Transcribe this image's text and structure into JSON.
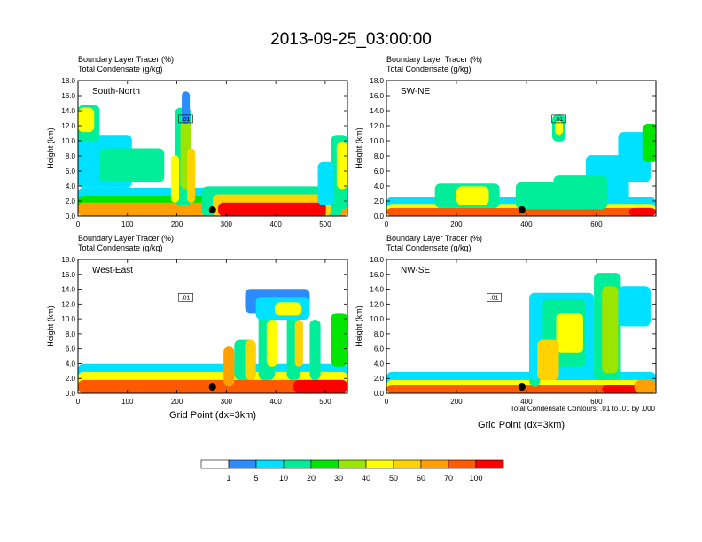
{
  "chart_data": {
    "type": "heatmap",
    "title": "2013-09-25_03:00:00",
    "panel_subtitle_1": "Boundary Layer Tracer    (%)",
    "panel_subtitle_2": "Total Condensate    (g/kg)",
    "ylabel": "Height (km)",
    "xlabel": "Grid Point (dx=3km)",
    "contour_note": "Total Condensate Contours: .01 to .01 by .000",
    "contour_label": ".01",
    "y_ticks": [
      "0.0",
      "2.0",
      "4.0",
      "6.0",
      "8.0",
      "10.0",
      "12.0",
      "14.0",
      "16.0",
      "18.0"
    ],
    "ylim": [
      0,
      18
    ],
    "colorbar": {
      "levels": [
        "1",
        "5",
        "10",
        "20",
        "30",
        "40",
        "50",
        "60",
        "70",
        "100"
      ],
      "colors": [
        "#ffffff",
        "#2b8cff",
        "#00e0ff",
        "#00ee9a",
        "#00e600",
        "#9ae600",
        "#ffff00",
        "#ffd200",
        "#ffa000",
        "#ff5a00",
        "#ff0000"
      ]
    },
    "panels": [
      {
        "name": "South-North",
        "xlim": [
          0,
          545
        ],
        "x_ticks": [
          0,
          100,
          200,
          300,
          400,
          500
        ],
        "marker_x": 272
      },
      {
        "name": "SW-NE",
        "xlim": [
          0,
          770
        ],
        "x_ticks": [
          0,
          200,
          400,
          600
        ],
        "marker_x": 387
      },
      {
        "name": "West-East",
        "xlim": [
          0,
          545
        ],
        "x_ticks": [
          0,
          100,
          200,
          300,
          400,
          500
        ],
        "marker_x": 272
      },
      {
        "name": "NW-SE",
        "xlim": [
          0,
          770
        ],
        "x_ticks": [
          0,
          200,
          400,
          600
        ],
        "marker_x": 387
      }
    ]
  }
}
